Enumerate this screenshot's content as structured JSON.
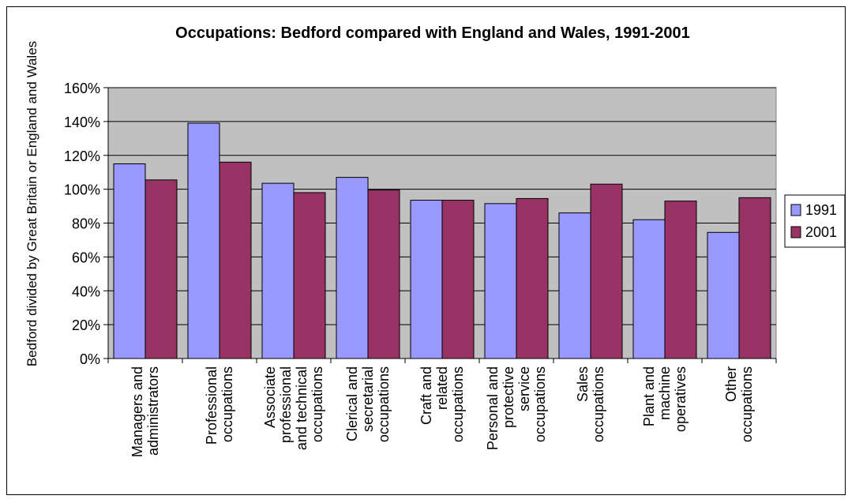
{
  "chart_data": {
    "type": "bar",
    "title": "Occupations: Bedford compared with England and Wales, 1991-2001",
    "xlabel": "",
    "ylabel": "Bedford divided by Great Britain or England and Wales",
    "ylim": [
      0,
      1.6
    ],
    "y_ticks": [
      "0%",
      "20%",
      "40%",
      "60%",
      "80%",
      "100%",
      "120%",
      "140%",
      "160%"
    ],
    "grid": true,
    "legend_position": "right",
    "categories": [
      [
        "Managers and",
        "administrators"
      ],
      [
        "Professional",
        "occupations"
      ],
      [
        "Associate",
        "professional",
        "and technical",
        "occupations"
      ],
      [
        "Clerical and",
        "secretarial",
        "occupations"
      ],
      [
        "Craft and",
        "related",
        "occupations"
      ],
      [
        "Personal and",
        "protective",
        "service",
        "occupations"
      ],
      [
        "Sales",
        "occupations"
      ],
      [
        "Plant and",
        "machine",
        "operatives"
      ],
      [
        "Other",
        "occupations"
      ]
    ],
    "series": [
      {
        "name": "1991",
        "color": "#9999ff",
        "values": [
          1.15,
          1.39,
          1.035,
          1.07,
          0.935,
          0.915,
          0.86,
          0.82,
          0.745
        ]
      },
      {
        "name": "2001",
        "color": "#993366",
        "values": [
          1.055,
          1.16,
          0.98,
          0.995,
          0.935,
          0.945,
          1.03,
          0.93,
          0.95
        ]
      }
    ],
    "plot_bg": "#c0c0c0"
  }
}
